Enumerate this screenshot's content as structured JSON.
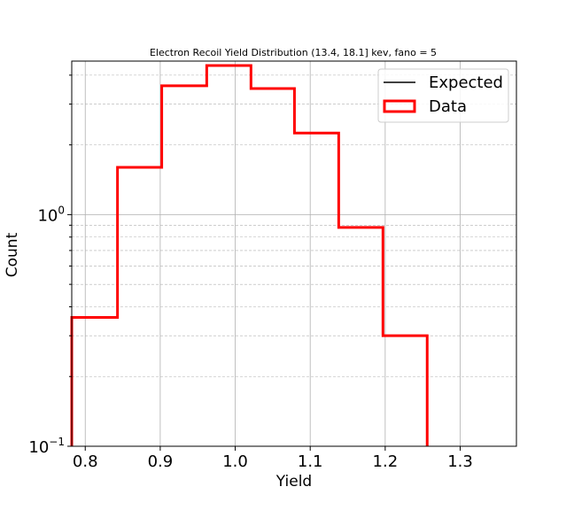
{
  "chart_data": {
    "type": "histogram",
    "title": "Electron Recoil Yield Distribution (13.4, 18.1] kev, fano = 5",
    "xlabel": "Yield",
    "ylabel": "Count",
    "xlim": [
      0.782,
      1.375
    ],
    "ylim": [
      0.1,
      4.6
    ],
    "yscale": "log",
    "grid": true,
    "legend": {
      "position": "top-right",
      "entries": [
        "Expected",
        "Data"
      ]
    },
    "xticks": [
      {
        "value": 0.8,
        "label": "0.8"
      },
      {
        "value": 0.9,
        "label": "0.9"
      },
      {
        "value": 1.0,
        "label": "1.0"
      },
      {
        "value": 1.1,
        "label": "1.1"
      },
      {
        "value": 1.2,
        "label": "1.2"
      },
      {
        "value": 1.3,
        "label": "1.3"
      }
    ],
    "yticks": [
      {
        "value": 1.0,
        "base": "10",
        "exp": "0"
      },
      {
        "value": 0.1,
        "base": "10",
        "exp": "−1"
      }
    ],
    "series": [
      {
        "name": "Expected",
        "color": "#000000",
        "values": []
      },
      {
        "name": "Data",
        "color": "#ff0000",
        "bin_edges": [
          0.782,
          0.843,
          0.902,
          0.962,
          1.021,
          1.079,
          1.138,
          1.197,
          1.256
        ],
        "values": [
          0.36,
          1.6,
          3.6,
          4.4,
          3.5,
          2.25,
          0.88,
          0.3
        ]
      }
    ]
  }
}
